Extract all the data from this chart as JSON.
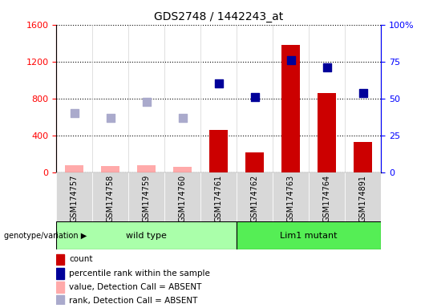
{
  "title": "GDS2748 / 1442243_at",
  "samples": [
    "GSM174757",
    "GSM174758",
    "GSM174759",
    "GSM174760",
    "GSM174761",
    "GSM174762",
    "GSM174763",
    "GSM174764",
    "GSM174891"
  ],
  "count_present": [
    null,
    null,
    null,
    null,
    460,
    220,
    1380,
    860,
    330
  ],
  "count_absent": [
    80,
    70,
    75,
    65,
    null,
    null,
    null,
    null,
    null
  ],
  "rank_present_pct": [
    null,
    null,
    null,
    null,
    60,
    51,
    76,
    71,
    54
  ],
  "rank_absent_pct": [
    40,
    37,
    48,
    37,
    null,
    null,
    null,
    null,
    null
  ],
  "ylim_left": [
    0,
    1600
  ],
  "ylim_right": [
    0,
    100
  ],
  "left_ticks": [
    0,
    400,
    800,
    1200,
    1600
  ],
  "right_ticks": [
    0,
    25,
    50,
    75,
    100
  ],
  "color_count_present": "#cc0000",
  "color_count_absent": "#ffaaaa",
  "color_rank_present": "#000099",
  "color_rank_absent": "#aaaacc",
  "wt_color": "#aaffaa",
  "mut_color": "#55ee55",
  "legend_items": [
    {
      "label": "count",
      "color": "#cc0000"
    },
    {
      "label": "percentile rank within the sample",
      "color": "#000099"
    },
    {
      "label": "value, Detection Call = ABSENT",
      "color": "#ffaaaa"
    },
    {
      "label": "rank, Detection Call = ABSENT",
      "color": "#aaaacc"
    }
  ]
}
